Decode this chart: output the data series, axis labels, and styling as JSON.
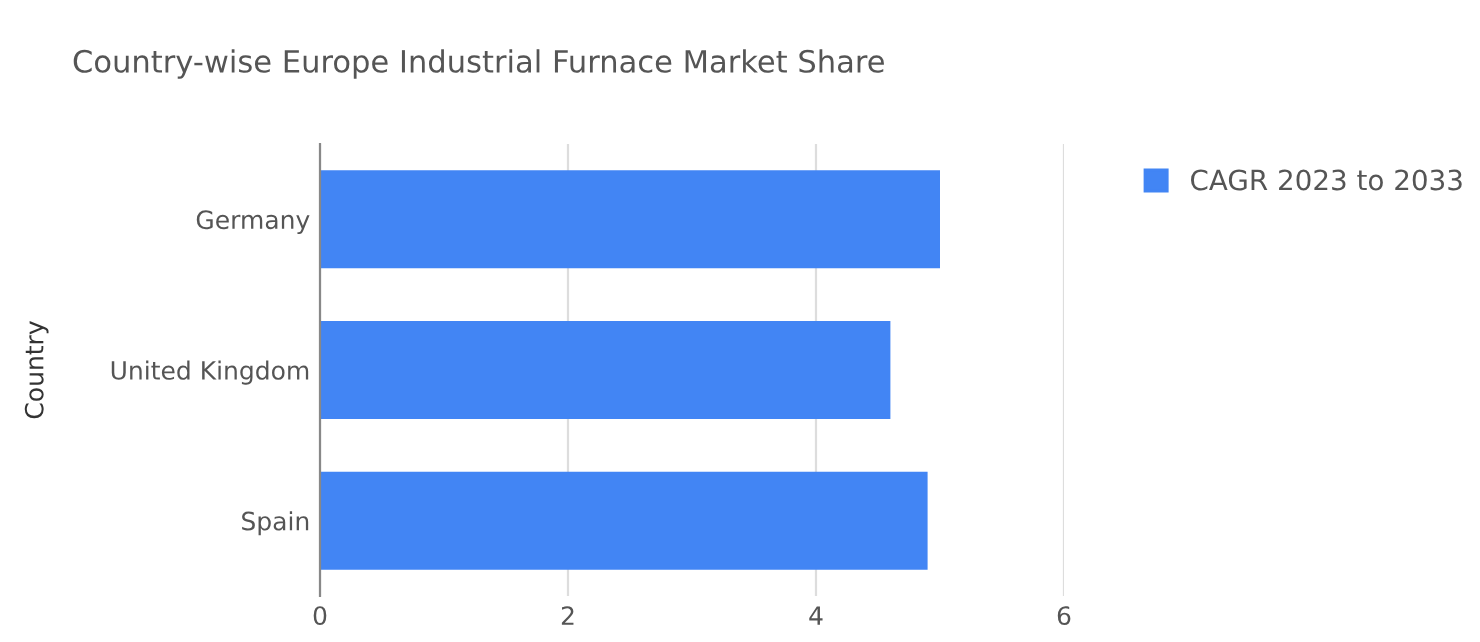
{
  "chart_data": {
    "type": "bar",
    "orientation": "horizontal",
    "title": "Country-wise Europe Industrial Furnace Market Share",
    "ylabel": "Country",
    "categories": [
      "Germany",
      "United Kingdom",
      "Spain"
    ],
    "series": [
      {
        "name": "CAGR 2023 to 2033",
        "color": "#4285f4",
        "values": [
          5.0,
          4.6,
          4.9
        ]
      }
    ],
    "xlim": [
      0,
      6
    ],
    "xticks": [
      0,
      2,
      4,
      6
    ],
    "grid": "x",
    "legend": "top right"
  }
}
